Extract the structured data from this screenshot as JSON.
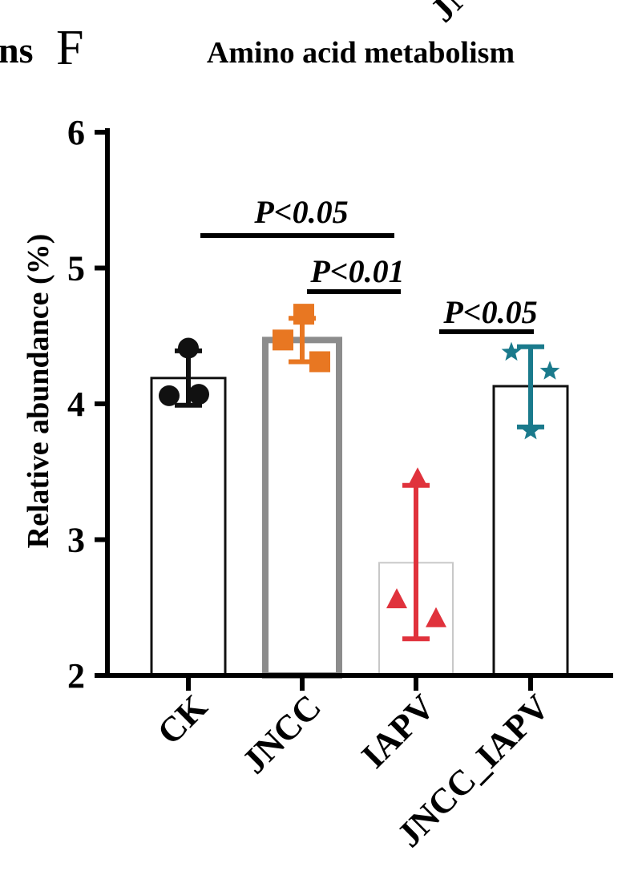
{
  "panel": {
    "left_fragment": "ns",
    "letter": "F",
    "top_fragment": "JN"
  },
  "chart_data": {
    "type": "bar",
    "title": "Amino acid metabolism",
    "ylabel": "Relative abundance (%)",
    "xlabel": "",
    "ylim": [
      2,
      6
    ],
    "yticks": [
      2,
      3,
      4,
      5,
      6
    ],
    "categories": [
      "CK",
      "JNCC",
      "IAPV",
      "JNCC_IAPV"
    ],
    "values": [
      4.19,
      4.47,
      2.83,
      4.13
    ],
    "error_low": [
      3.99,
      4.31,
      2.27,
      3.83
    ],
    "error_high": [
      4.39,
      4.63,
      3.4,
      4.42
    ],
    "points": [
      [
        4.41,
        4.06,
        4.07
      ],
      [
        4.66,
        4.47,
        4.31
      ],
      [
        3.45,
        2.56,
        2.42
      ],
      [
        4.38,
        4.24,
        3.8
      ]
    ],
    "colors": [
      "#111111",
      "#E87722",
      "#E0323C",
      "#1A7A8C"
    ],
    "bar_outline": [
      "#111111",
      "#8C8C8C",
      "#C8C8C8",
      "#111111"
    ],
    "markers": [
      "circle",
      "square",
      "triangle",
      "star"
    ],
    "annotations": [
      {
        "text": "P<0.05",
        "from": "CK",
        "to": "IAPV"
      },
      {
        "text": "P<0.01",
        "from": "JNCC",
        "to": "IAPV"
      },
      {
        "text": "P<0.05",
        "from": "IAPV",
        "to": "JNCC_IAPV"
      }
    ]
  }
}
